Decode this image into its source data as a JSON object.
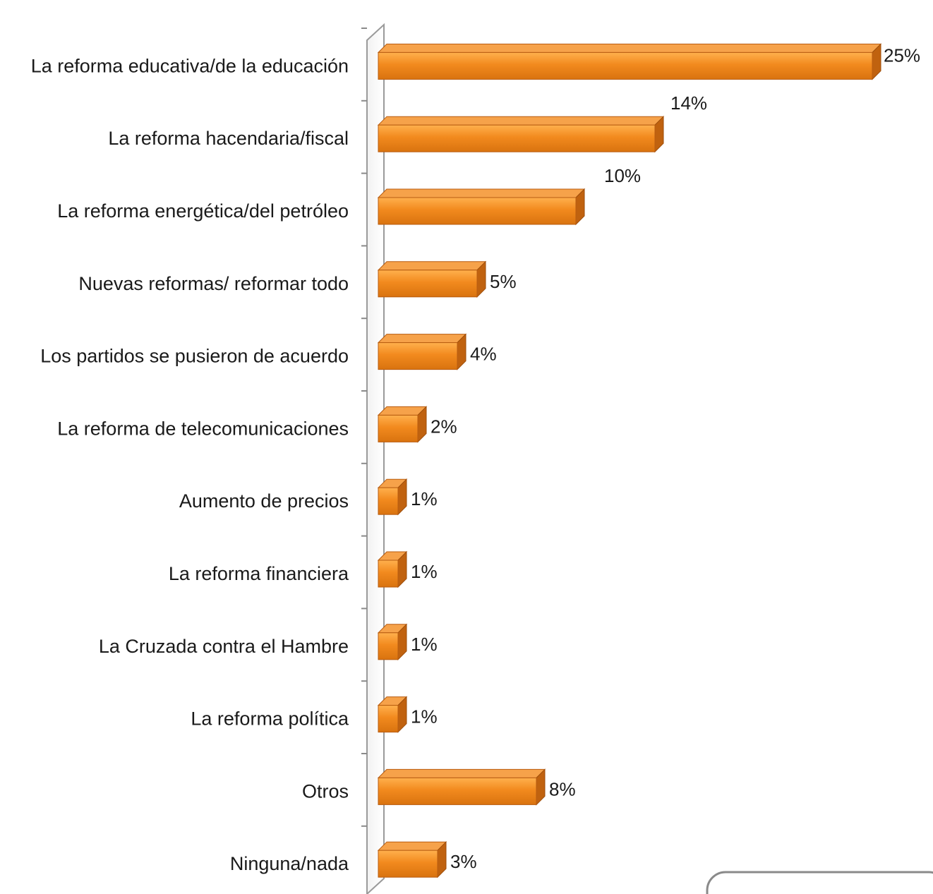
{
  "chart_data": {
    "type": "bar",
    "orientation": "horizontal",
    "style": "3d",
    "bar_color": "#F28A1E",
    "bar_top_color": "#F6A24A",
    "bar_side_color": "#C0620F",
    "categories": [
      "La reforma educativa/de la educación",
      "La reforma hacendaria/fiscal",
      "La reforma energética/del petróleo",
      "Nuevas reformas/ reformar todo",
      "Los partidos se pusieron de acuerdo",
      "La reforma de telecomunicaciones",
      "Aumento de precios",
      "La reforma financiera",
      "La Cruzada contra el Hambre",
      "La reforma política",
      "Otros",
      "Ninguna/nada"
    ],
    "values": [
      25,
      14,
      10,
      5,
      4,
      2,
      1,
      1,
      1,
      1,
      8,
      3
    ],
    "value_labels": [
      "25%",
      "14%",
      "10%",
      "5%",
      "4%",
      "2%",
      "1%",
      "1%",
      "1%",
      "1%",
      "8%",
      "3%"
    ],
    "xlim": [
      0,
      25
    ],
    "title": "",
    "xlabel": "",
    "ylabel": "",
    "grid": false,
    "legend": "none"
  }
}
